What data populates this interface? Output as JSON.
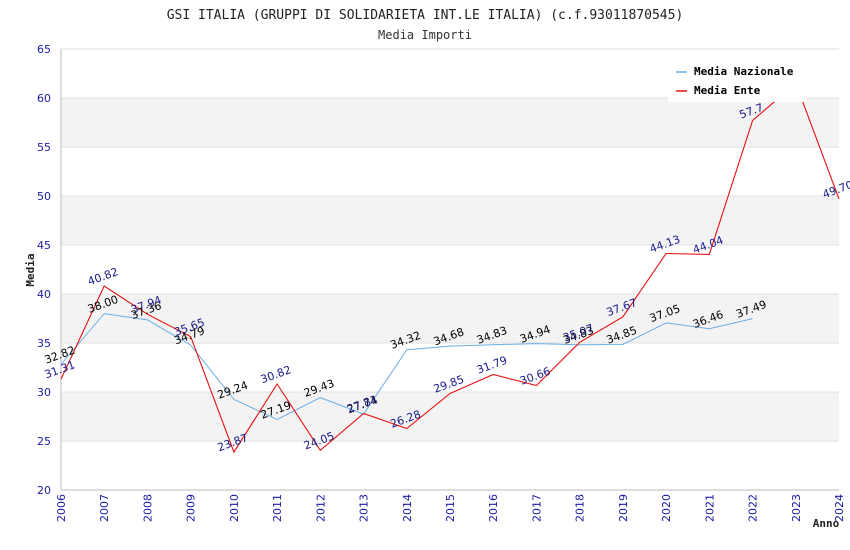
{
  "chart_data": {
    "type": "line",
    "title": "GSI ITALIA (GRUPPI DI SOLIDARIETA INT.LE ITALIA) (c.f.93011870545)",
    "subtitle": "Media Importi",
    "xlabel": "Anno",
    "ylabel": "Media",
    "x": [
      "2006",
      "2007",
      "2008",
      "2009",
      "2010",
      "2011",
      "2012",
      "2013",
      "2014",
      "2015",
      "2016",
      "2017",
      "2018",
      "2019",
      "2020",
      "2021",
      "2022",
      "2023",
      "2024"
    ],
    "yticks": [
      20,
      25,
      30,
      35,
      40,
      45,
      50,
      55,
      60,
      65
    ],
    "ylim": [
      20,
      65
    ],
    "grid": true,
    "legend_position": "top-right",
    "series": [
      {
        "name": "Media Nazionale",
        "color": "#6aaee8",
        "values": [
          32.82,
          38.0,
          37.36,
          34.79,
          29.24,
          27.19,
          29.43,
          27.74,
          34.32,
          34.68,
          34.83,
          34.94,
          34.83,
          34.85,
          37.05,
          36.46,
          37.49,
          null,
          null
        ],
        "labels": [
          "32.82",
          "38.00",
          "37.36",
          "34.79",
          "29.24",
          "27.19",
          "29.43",
          "27.74",
          "34.32",
          "34.68",
          "34.83",
          "34.94",
          "34.83",
          "34.85",
          "37.05",
          "36.46",
          "37.49",
          "",
          ""
        ]
      },
      {
        "name": "Media Ente",
        "color": "#e81010",
        "values": [
          31.31,
          40.82,
          37.94,
          35.65,
          23.87,
          30.82,
          24.05,
          27.81,
          26.28,
          29.85,
          31.79,
          30.66,
          35.07,
          37.67,
          44.13,
          44.04,
          57.7,
          61.5,
          49.7
        ],
        "labels": [
          "31.31",
          "40.82",
          "37.94",
          "35.65",
          "23.87",
          "30.82",
          "24.05",
          "27.81",
          "26.28",
          "29.85",
          "31.79",
          "30.66",
          "35.07",
          "37.67",
          "44.13",
          "44.04",
          "57.7",
          "",
          "49.70"
        ]
      }
    ]
  }
}
